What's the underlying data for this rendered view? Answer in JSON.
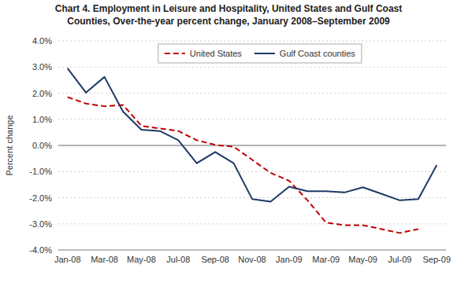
{
  "chart_data": {
    "type": "line",
    "title": "Chart 4. Employment in Leisure and Hospitality, United States and Gulf Coast\nCounties, Over-the-year percent change, January 2008–September 2009",
    "y_label": "Percent change",
    "categories": [
      "Jan-08",
      null,
      "Mar-08",
      null,
      "May-08",
      null,
      "Jul-08",
      null,
      "Sep-08",
      null,
      "Nov-08",
      null,
      "Jan-09",
      null,
      "Mar-09",
      null,
      "May-09",
      null,
      "Jul-09",
      null,
      "Sep-09"
    ],
    "series": [
      {
        "name": "United States",
        "color": "#C00000",
        "line_style": "dashed",
        "values": [
          1.85,
          1.6,
          1.5,
          1.55,
          0.75,
          0.65,
          0.55,
          0.2,
          0.02,
          -0.05,
          -0.55,
          -1.05,
          -1.35,
          -2.1,
          -2.95,
          -3.05,
          -3.05,
          -3.2,
          -3.35,
          -3.2,
          null
        ]
      },
      {
        "name": "Gulf Coast counties",
        "color": "#1F3864",
        "line_style": "solid",
        "values": [
          2.95,
          2.02,
          2.62,
          1.3,
          0.6,
          0.55,
          0.2,
          -0.68,
          -0.25,
          -0.68,
          -2.05,
          -2.15,
          -1.58,
          -1.75,
          -1.75,
          -1.8,
          -1.6,
          -1.85,
          -2.1,
          -2.05,
          -0.75
        ]
      }
    ],
    "ylim": [
      -4.0,
      4.0
    ],
    "yticks": [
      {
        "value": -4.0,
        "label": "-4.0%"
      },
      {
        "value": -3.0,
        "label": "-3.0%"
      },
      {
        "value": -2.0,
        "label": "-2.0%"
      },
      {
        "value": -1.0,
        "label": "-1.0%"
      },
      {
        "value": 0.0,
        "label": "0.0%"
      },
      {
        "value": 1.0,
        "label": "1.0%"
      },
      {
        "value": 2.0,
        "label": "2.0%"
      },
      {
        "value": 3.0,
        "label": "3.0%"
      },
      {
        "value": 4.0,
        "label": "4.0%"
      }
    ],
    "grid": true,
    "legend": "top"
  }
}
